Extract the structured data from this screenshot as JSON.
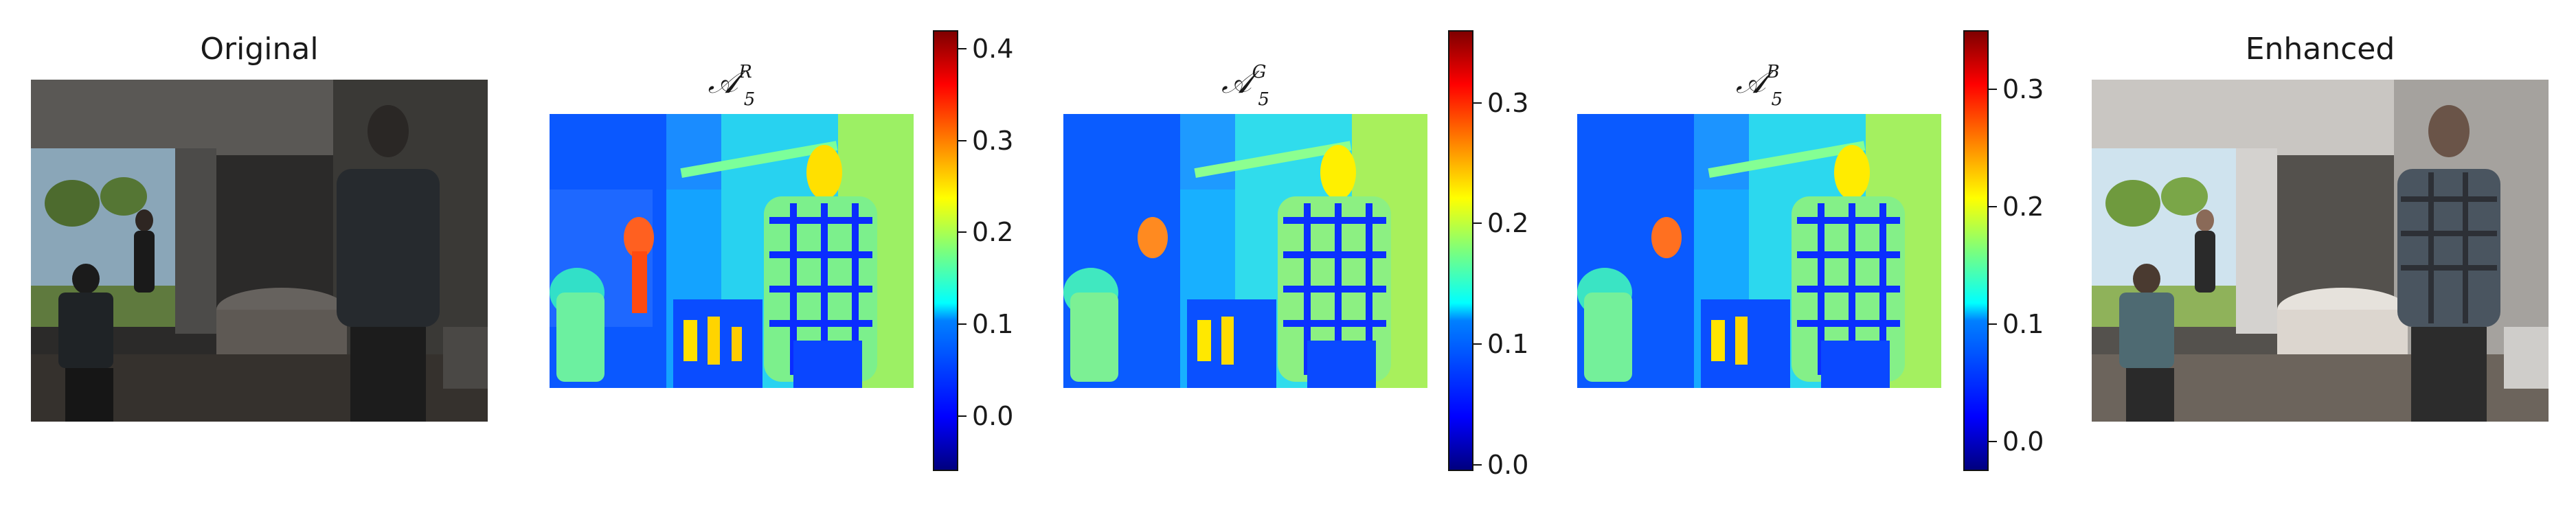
{
  "panels": {
    "original": {
      "title": "Original"
    },
    "enhanced": {
      "title": "Enhanced"
    },
    "map_r": {
      "title": {
        "base": "𝒜",
        "sup": "R",
        "sub": "5"
      },
      "colorbar": {
        "ticks": [
          "0.4",
          "0.3",
          "0.2",
          "0.1",
          "0.0"
        ],
        "tick_values": [
          0.4,
          0.3,
          0.2,
          0.1,
          0.0
        ],
        "range": [
          -0.06,
          0.42
        ]
      }
    },
    "map_g": {
      "title": {
        "base": "𝒜",
        "sup": "G",
        "sub": "5"
      },
      "colorbar": {
        "ticks": [
          "0.3",
          "0.2",
          "0.1",
          "0.0"
        ],
        "tick_values": [
          0.3,
          0.2,
          0.1,
          0.0
        ],
        "range": [
          -0.005,
          0.36
        ]
      }
    },
    "map_b": {
      "title": {
        "base": "𝒜",
        "sup": "B",
        "sub": "5"
      },
      "colorbar": {
        "ticks": [
          "0.3",
          "0.2",
          "0.1",
          "0.0"
        ],
        "tick_values": [
          0.3,
          0.2,
          0.1,
          0.0
        ],
        "range": [
          -0.025,
          0.35
        ]
      }
    }
  },
  "colormap": "jet"
}
